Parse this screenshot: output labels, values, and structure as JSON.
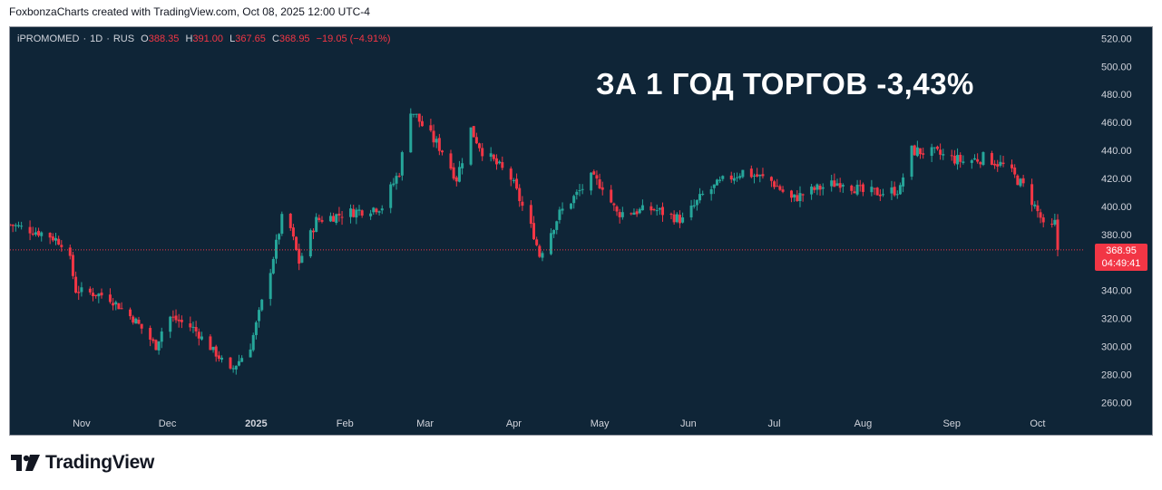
{
  "header": {
    "caption": "FoxbonzaCharts created with TradingView.com, Oct 08, 2025 12:00 UTC-4"
  },
  "legend": {
    "symbol": "iPROMOMED",
    "interval": "1D",
    "exchange": "RUS",
    "open_label": "O",
    "open": "388.35",
    "high_label": "H",
    "high": "391.00",
    "low_label": "L",
    "low": "367.65",
    "close_label": "C",
    "close": "368.95",
    "change": "−19.05 (−4.91%)"
  },
  "overlay_title": "ЗА 1 ГОД ТОРГОВ -3,43%",
  "price_badge": {
    "price": "368.95",
    "countdown": "04:49:41"
  },
  "brand": {
    "name": "TradingView",
    "icon": "tradingview-logo-icon"
  },
  "colors": {
    "background": "#0f2537",
    "up": "#26a69a",
    "down": "#f23645",
    "axis_text": "#d1d4dc"
  },
  "chart_data": {
    "type": "candlestick",
    "title": "ЗА 1 ГОД ТОРГОВ -3,43%",
    "ylim": [
      255,
      528
    ],
    "y_ticks": [
      "520.00",
      "500.00",
      "480.00",
      "460.00",
      "440.00",
      "420.00",
      "400.00",
      "380.00",
      "360.00",
      "340.00",
      "320.00",
      "300.00",
      "280.00",
      "260.00"
    ],
    "x_labels": [
      "Nov",
      "Dec",
      "2025",
      "Feb",
      "Mar",
      "Apr",
      "May",
      "Jun",
      "Jul",
      "Aug",
      "Sep",
      "Oct"
    ],
    "last_price": 368.95,
    "grid": false,
    "series": [
      {
        "key_points": [
          {
            "date": "2024-10-07",
            "close": 387
          },
          {
            "date": "2024-10-20",
            "close": 380
          },
          {
            "date": "2024-10-27",
            "close": 372
          },
          {
            "date": "2024-10-30",
            "close": 340
          },
          {
            "date": "2024-11-10",
            "close": 336
          },
          {
            "date": "2024-11-20",
            "close": 318
          },
          {
            "date": "2024-11-27",
            "close": 300
          },
          {
            "date": "2024-12-01",
            "close": 322
          },
          {
            "date": "2024-12-10",
            "close": 313
          },
          {
            "date": "2024-12-20",
            "close": 290
          },
          {
            "date": "2024-12-23",
            "close": 282
          },
          {
            "date": "2024-12-30",
            "close": 300
          },
          {
            "date": "2025-01-06",
            "close": 355
          },
          {
            "date": "2025-01-11",
            "close": 400
          },
          {
            "date": "2025-01-16",
            "close": 360
          },
          {
            "date": "2025-01-22",
            "close": 390
          },
          {
            "date": "2025-02-01",
            "close": 395
          },
          {
            "date": "2025-02-14",
            "close": 400
          },
          {
            "date": "2025-02-20",
            "close": 425
          },
          {
            "date": "2025-02-24",
            "close": 470
          },
          {
            "date": "2025-03-01",
            "close": 455
          },
          {
            "date": "2025-03-07",
            "close": 440
          },
          {
            "date": "2025-03-12",
            "close": 420
          },
          {
            "date": "2025-03-17",
            "close": 455
          },
          {
            "date": "2025-03-21",
            "close": 440
          },
          {
            "date": "2025-03-31",
            "close": 420
          },
          {
            "date": "2025-04-08",
            "close": 380
          },
          {
            "date": "2025-04-10",
            "close": 365
          },
          {
            "date": "2025-04-17",
            "close": 395
          },
          {
            "date": "2025-04-28",
            "close": 420
          },
          {
            "date": "2025-05-02",
            "close": 415
          },
          {
            "date": "2025-05-07",
            "close": 395
          },
          {
            "date": "2025-05-20",
            "close": 398
          },
          {
            "date": "2025-05-30",
            "close": 390
          },
          {
            "date": "2025-06-06",
            "close": 408
          },
          {
            "date": "2025-06-13",
            "close": 418
          },
          {
            "date": "2025-06-20",
            "close": 425
          },
          {
            "date": "2025-06-30",
            "close": 418
          },
          {
            "date": "2025-07-07",
            "close": 405
          },
          {
            "date": "2025-07-15",
            "close": 412
          },
          {
            "date": "2025-07-25",
            "close": 418
          },
          {
            "date": "2025-08-01",
            "close": 410
          },
          {
            "date": "2025-08-08",
            "close": 410
          },
          {
            "date": "2025-08-14",
            "close": 412
          },
          {
            "date": "2025-08-17",
            "close": 440
          },
          {
            "date": "2025-08-26",
            "close": 438
          },
          {
            "date": "2025-09-05",
            "close": 432
          },
          {
            "date": "2025-09-13",
            "close": 435
          },
          {
            "date": "2025-09-20",
            "close": 428
          },
          {
            "date": "2025-09-27",
            "close": 412
          },
          {
            "date": "2025-10-02",
            "close": 392
          },
          {
            "date": "2025-10-04",
            "close": 378
          },
          {
            "date": "2025-10-07",
            "close": 388
          },
          {
            "date": "2025-10-08",
            "close": 368.95
          }
        ]
      }
    ]
  }
}
